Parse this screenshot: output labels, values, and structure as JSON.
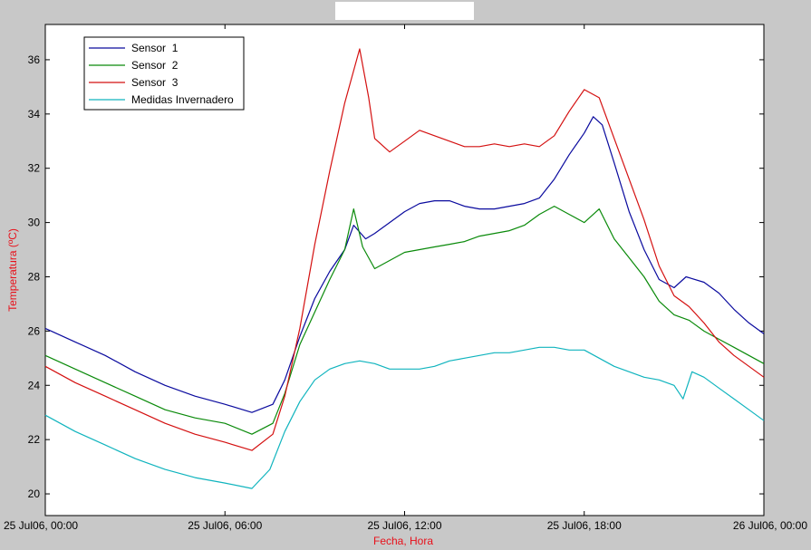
{
  "chart_data": {
    "type": "line",
    "xlabel": "Fecha, Hora",
    "ylabel": "Temperatura (ºC)",
    "xlim": [
      0,
      24
    ],
    "ylim": [
      19.2,
      37.3
    ],
    "x_ticks": [
      {
        "value": 0,
        "label": "25 Jul06, 00:00"
      },
      {
        "value": 6,
        "label": "25 Jul06, 06:00"
      },
      {
        "value": 12,
        "label": "25 Jul06, 12:00"
      },
      {
        "value": 18,
        "label": "25 Jul06, 18:00"
      },
      {
        "value": 24,
        "label": "26 Jul06, 00:00"
      }
    ],
    "y_ticks": [
      20,
      22,
      24,
      26,
      28,
      30,
      32,
      34,
      36
    ],
    "legend_position": "top-left",
    "series": [
      {
        "name": "Sensor  1",
        "color": "#0a0a9e",
        "points": [
          [
            0,
            26.1
          ],
          [
            1,
            25.6
          ],
          [
            2,
            25.1
          ],
          [
            3,
            24.5
          ],
          [
            4,
            24.0
          ],
          [
            5,
            23.6
          ],
          [
            6,
            23.3
          ],
          [
            6.9,
            23.0
          ],
          [
            7.6,
            23.3
          ],
          [
            8,
            24.2
          ],
          [
            8.5,
            25.8
          ],
          [
            9,
            27.2
          ],
          [
            9.5,
            28.2
          ],
          [
            10,
            29.0
          ],
          [
            10.3,
            29.9
          ],
          [
            10.7,
            29.4
          ],
          [
            11,
            29.6
          ],
          [
            11.5,
            30.0
          ],
          [
            12,
            30.4
          ],
          [
            12.5,
            30.7
          ],
          [
            13,
            30.8
          ],
          [
            13.5,
            30.8
          ],
          [
            14,
            30.6
          ],
          [
            14.5,
            30.5
          ],
          [
            15,
            30.5
          ],
          [
            15.5,
            30.6
          ],
          [
            16,
            30.7
          ],
          [
            16.5,
            30.9
          ],
          [
            17,
            31.6
          ],
          [
            17.5,
            32.5
          ],
          [
            18,
            33.3
          ],
          [
            18.3,
            33.9
          ],
          [
            18.6,
            33.6
          ],
          [
            19,
            32.2
          ],
          [
            19.5,
            30.4
          ],
          [
            20,
            29.0
          ],
          [
            20.5,
            27.9
          ],
          [
            21,
            27.6
          ],
          [
            21.4,
            28.0
          ],
          [
            22,
            27.8
          ],
          [
            22.5,
            27.4
          ],
          [
            23,
            26.8
          ],
          [
            23.5,
            26.3
          ],
          [
            24,
            25.9
          ]
        ]
      },
      {
        "name": "Sensor  2",
        "color": "#0a8a0a",
        "points": [
          [
            0,
            25.1
          ],
          [
            1,
            24.6
          ],
          [
            2,
            24.1
          ],
          [
            3,
            23.6
          ],
          [
            4,
            23.1
          ],
          [
            5,
            22.8
          ],
          [
            6,
            22.6
          ],
          [
            6.9,
            22.2
          ],
          [
            7.6,
            22.6
          ],
          [
            8,
            23.7
          ],
          [
            8.5,
            25.5
          ],
          [
            9,
            26.7
          ],
          [
            9.5,
            27.9
          ],
          [
            10,
            29.0
          ],
          [
            10.3,
            30.5
          ],
          [
            10.6,
            29.1
          ],
          [
            11,
            28.3
          ],
          [
            11.5,
            28.6
          ],
          [
            12,
            28.9
          ],
          [
            12.5,
            29.0
          ],
          [
            13,
            29.1
          ],
          [
            13.5,
            29.2
          ],
          [
            14,
            29.3
          ],
          [
            14.5,
            29.5
          ],
          [
            15,
            29.6
          ],
          [
            15.5,
            29.7
          ],
          [
            16,
            29.9
          ],
          [
            16.5,
            30.3
          ],
          [
            17,
            30.6
          ],
          [
            17.5,
            30.3
          ],
          [
            18,
            30.0
          ],
          [
            18.5,
            30.5
          ],
          [
            19,
            29.4
          ],
          [
            19.5,
            28.7
          ],
          [
            20,
            28.0
          ],
          [
            20.5,
            27.1
          ],
          [
            21,
            26.6
          ],
          [
            21.5,
            26.4
          ],
          [
            22,
            26.0
          ],
          [
            22.5,
            25.7
          ],
          [
            23,
            25.4
          ],
          [
            23.5,
            25.1
          ],
          [
            24,
            24.8
          ]
        ]
      },
      {
        "name": "Sensor  3",
        "color": "#d41010",
        "points": [
          [
            0,
            24.7
          ],
          [
            1,
            24.1
          ],
          [
            2,
            23.6
          ],
          [
            3,
            23.1
          ],
          [
            4,
            22.6
          ],
          [
            5,
            22.2
          ],
          [
            6,
            21.9
          ],
          [
            6.9,
            21.6
          ],
          [
            7.6,
            22.2
          ],
          [
            8,
            23.6
          ],
          [
            8.5,
            26.1
          ],
          [
            9,
            29.2
          ],
          [
            9.5,
            31.9
          ],
          [
            10,
            34.4
          ],
          [
            10.3,
            35.6
          ],
          [
            10.5,
            36.4
          ],
          [
            10.8,
            34.6
          ],
          [
            11,
            33.1
          ],
          [
            11.5,
            32.6
          ],
          [
            12,
            33.0
          ],
          [
            12.5,
            33.4
          ],
          [
            13,
            33.2
          ],
          [
            13.5,
            33.0
          ],
          [
            14,
            32.8
          ],
          [
            14.5,
            32.8
          ],
          [
            15,
            32.9
          ],
          [
            15.5,
            32.8
          ],
          [
            16,
            32.9
          ],
          [
            16.5,
            32.8
          ],
          [
            17,
            33.2
          ],
          [
            17.5,
            34.1
          ],
          [
            18,
            34.9
          ],
          [
            18.5,
            34.6
          ],
          [
            19,
            33.1
          ],
          [
            19.5,
            31.6
          ],
          [
            20,
            30.1
          ],
          [
            20.5,
            28.4
          ],
          [
            21,
            27.3
          ],
          [
            21.5,
            26.9
          ],
          [
            22,
            26.3
          ],
          [
            22.5,
            25.6
          ],
          [
            23,
            25.1
          ],
          [
            23.5,
            24.7
          ],
          [
            24,
            24.3
          ]
        ]
      },
      {
        "name": "Medidas Invernadero",
        "color": "#10b4be",
        "points": [
          [
            0,
            22.9
          ],
          [
            1,
            22.3
          ],
          [
            2,
            21.8
          ],
          [
            3,
            21.3
          ],
          [
            4,
            20.9
          ],
          [
            5,
            20.6
          ],
          [
            6,
            20.4
          ],
          [
            6.9,
            20.2
          ],
          [
            7.5,
            20.9
          ],
          [
            8,
            22.3
          ],
          [
            8.5,
            23.4
          ],
          [
            9,
            24.2
          ],
          [
            9.5,
            24.6
          ],
          [
            10,
            24.8
          ],
          [
            10.5,
            24.9
          ],
          [
            11,
            24.8
          ],
          [
            11.5,
            24.6
          ],
          [
            12,
            24.6
          ],
          [
            12.5,
            24.6
          ],
          [
            13,
            24.7
          ],
          [
            13.5,
            24.9
          ],
          [
            14,
            25.0
          ],
          [
            14.5,
            25.1
          ],
          [
            15,
            25.2
          ],
          [
            15.5,
            25.2
          ],
          [
            16,
            25.3
          ],
          [
            16.5,
            25.4
          ],
          [
            17,
            25.4
          ],
          [
            17.5,
            25.3
          ],
          [
            18,
            25.3
          ],
          [
            18.5,
            25.0
          ],
          [
            19,
            24.7
          ],
          [
            19.5,
            24.5
          ],
          [
            20,
            24.3
          ],
          [
            20.5,
            24.2
          ],
          [
            21,
            24.0
          ],
          [
            21.3,
            23.5
          ],
          [
            21.6,
            24.5
          ],
          [
            22,
            24.3
          ],
          [
            22.5,
            23.9
          ],
          [
            23,
            23.5
          ],
          [
            23.5,
            23.1
          ],
          [
            24,
            22.7
          ]
        ]
      }
    ]
  }
}
